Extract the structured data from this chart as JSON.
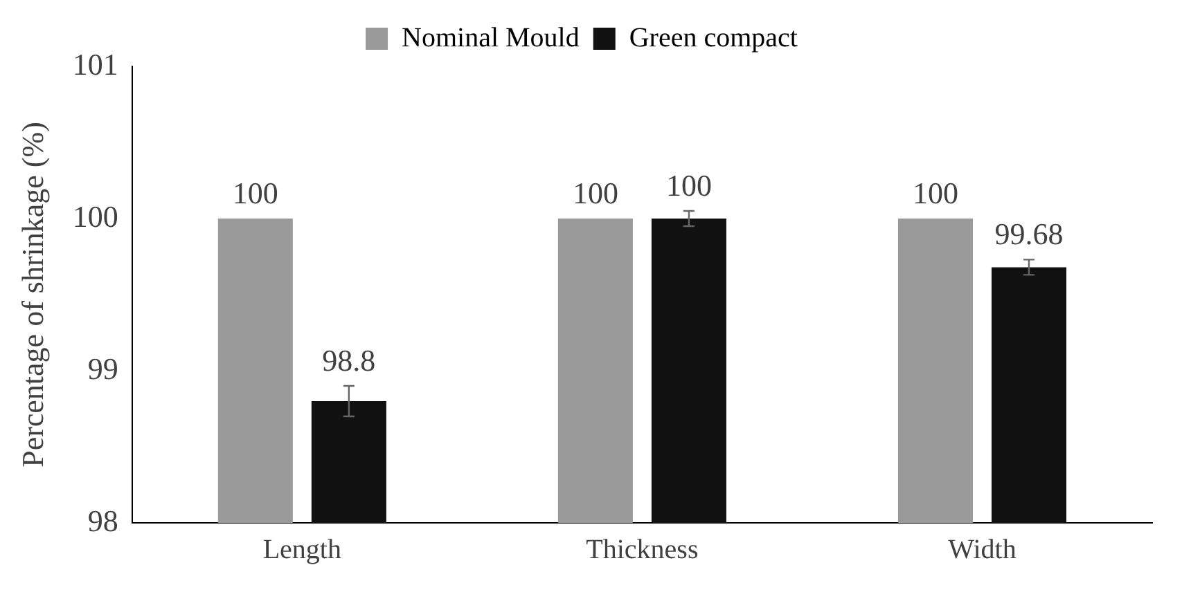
{
  "chart_data": {
    "type": "bar",
    "ylabel": "Percentage of shrinkage (%)",
    "categories": [
      "Length",
      "Thickness",
      "Width"
    ],
    "series": [
      {
        "name": "Nominal Mould",
        "color": "#9a9a9a",
        "values": [
          100,
          100,
          100
        ]
      },
      {
        "name": "Green compact",
        "color": "#111111",
        "values": [
          98.8,
          100,
          99.68
        ],
        "errors": [
          0.1,
          0.05,
          0.05
        ]
      }
    ],
    "ylim": [
      98,
      101
    ],
    "yticks": [
      98,
      99,
      100,
      101
    ],
    "grid": false,
    "legend": "top",
    "data_labels": true
  }
}
